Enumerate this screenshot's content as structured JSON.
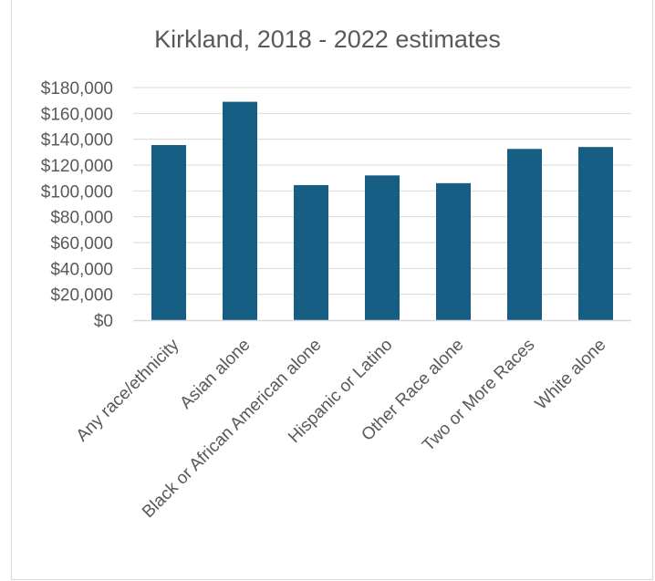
{
  "chart_data": {
    "type": "bar",
    "title": "Kirkland, 2018 - 2022 estimates",
    "categories": [
      "Any race/ethnicity",
      "Asian alone",
      "Black or African American alone",
      "Hispanic or Latino",
      "Other Race alone",
      "Two or More Races",
      "White alone"
    ],
    "values": [
      135500,
      169000,
      104500,
      112000,
      106000,
      132500,
      134000
    ],
    "ylim": [
      0,
      180000
    ],
    "ytick_step": 20000,
    "ytick_labels": [
      "$0",
      "$20,000",
      "$40,000",
      "$60,000",
      "$80,000",
      "$100,000",
      "$120,000",
      "$140,000",
      "$160,000",
      "$180,000"
    ],
    "xlabel": "",
    "ylabel": "",
    "grid": true,
    "legend": "none",
    "bar_color": "#165e83",
    "grid_color": "#d9d9d9",
    "text_color": "#595959"
  }
}
